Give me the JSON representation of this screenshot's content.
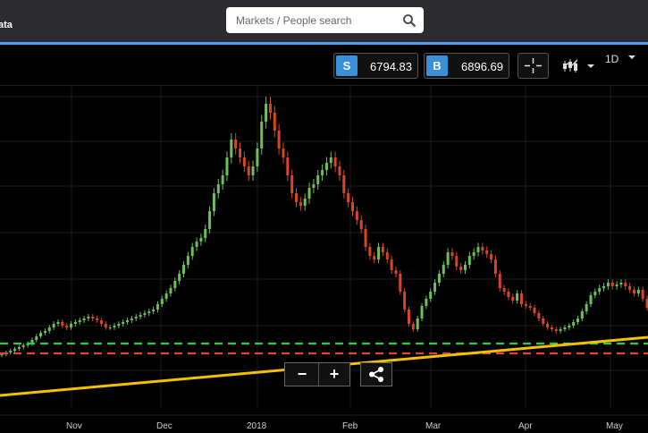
{
  "header": {
    "brand_fragment": "ata"
  },
  "search": {
    "placeholder": "Markets / People search",
    "icon": "search-icon"
  },
  "quote": {
    "sell_label": "S",
    "sell_price": "6794.83",
    "buy_label": "B",
    "buy_price": "6896.69"
  },
  "toolbar": {
    "crosshair_icon": "crosshair-icon",
    "chart_type_icon": "candlestick-icon",
    "timeframe": "1D"
  },
  "zoom": {
    "minus": "−",
    "plus": "+",
    "share_icon": "share-icon"
  },
  "x_axis": {
    "labels": [
      "Nov",
      "Dec",
      "2018",
      "Feb",
      "Mar",
      "Apr",
      "May"
    ]
  },
  "colors": {
    "bull": "#6cc05a",
    "bear": "#d9452b",
    "support": "#2ecc40",
    "resistance": "#e8423a",
    "trend": "#f2c200",
    "accent": "#4aa3f0"
  },
  "chart_data": {
    "type": "candlestick",
    "x_ticks": [
      "Nov",
      "Dec",
      "2018",
      "Feb",
      "Mar",
      "Apr",
      "May"
    ],
    "close": [
      5500,
      5600,
      5700,
      5800,
      5900,
      6000,
      6100,
      6300,
      6500,
      6700,
      6800,
      7000,
      7200,
      7300,
      7100,
      7000,
      7200,
      7300,
      7400,
      7500,
      7600,
      7500,
      7400,
      7200,
      7000,
      7000,
      7100,
      7200,
      7300,
      7400,
      7500,
      7600,
      7700,
      7800,
      7900,
      8000,
      8300,
      8600,
      8900,
      9200,
      9600,
      10000,
      10500,
      11000,
      11500,
      11800,
      12000,
      12500,
      13500,
      14500,
      15000,
      15500,
      16500,
      17500,
      17000,
      16500,
      16000,
      15500,
      16000,
      17000,
      18500,
      19500,
      19000,
      18000,
      17000,
      16500,
      15500,
      14500,
      14000,
      13800,
      14200,
      14800,
      15000,
      15500,
      15800,
      16200,
      16500,
      16000,
      15500,
      14500,
      14000,
      13500,
      13000,
      12500,
      11500,
      11000,
      10800,
      11500,
      11200,
      10800,
      10200,
      10000,
      9000,
      8000,
      7200,
      6900,
      7500,
      8200,
      8600,
      9000,
      9500,
      10000,
      10500,
      11200,
      11000,
      10400,
      10200,
      10500,
      11000,
      11200,
      11500,
      11300,
      11100,
      10800,
      10000,
      9200,
      9000,
      8700,
      8500,
      8900,
      8300,
      8200,
      8100,
      7800,
      7500,
      7200,
      7000,
      6900,
      6800,
      6900,
      7000,
      7100,
      7300,
      7500,
      7900,
      8300,
      8800,
      9000,
      9200,
      9300,
      9500,
      9300,
      9400,
      9500,
      9300,
      9100,
      8900,
      9100,
      8600,
      8100
    ]
  }
}
